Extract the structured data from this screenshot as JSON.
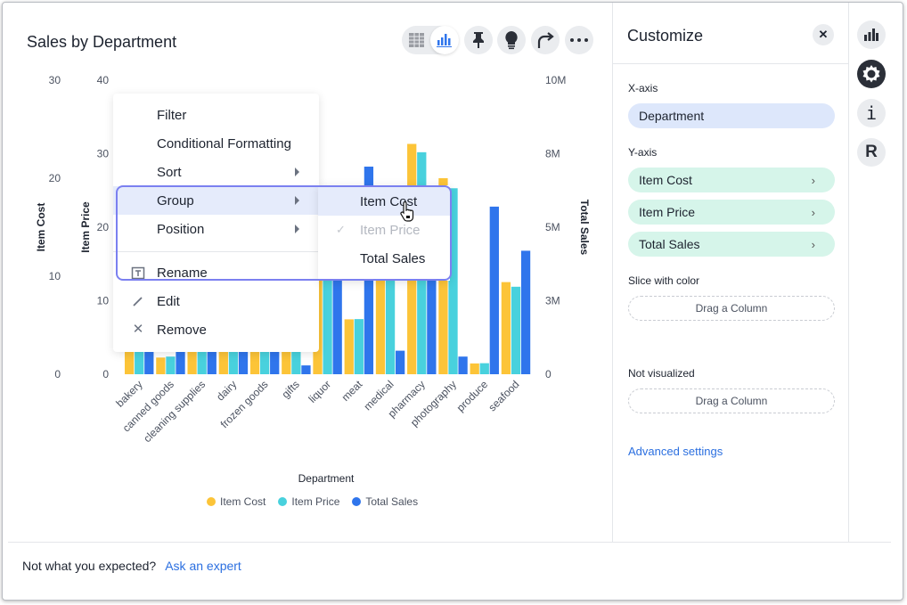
{
  "header": {
    "title": "Sales by Department",
    "icons": [
      "table-icon",
      "bar-chart-icon",
      "pin-icon",
      "lightbulb-icon",
      "share-icon",
      "more-icon"
    ]
  },
  "chart_data": {
    "type": "bar",
    "xlabel": "Department",
    "categories": [
      "bakery",
      "canned goods",
      "cleaning supplies",
      "dairy",
      "frozen goods",
      "gifts",
      "liquor",
      "meat",
      "medical",
      "pharmacy",
      "photography",
      "produce",
      "seafood"
    ],
    "axes": [
      {
        "label": "Item Cost",
        "range": [
          0,
          30
        ],
        "ticks": [
          "0",
          "10",
          "20",
          "30"
        ],
        "side": "left"
      },
      {
        "label": "Item Price",
        "range": [
          0,
          40
        ],
        "ticks": [
          "0",
          "10",
          "20",
          "30",
          "40"
        ],
        "side": "left"
      },
      {
        "label": "Total Sales",
        "range": [
          0,
          10000000
        ],
        "ticks": [
          "0",
          "3M",
          "5M",
          "8M",
          "10M"
        ],
        "side": "right"
      }
    ],
    "series": [
      {
        "name": "Item Cost",
        "axis": 0,
        "color": "#fcc438",
        "values": [
          3,
          1.7,
          3,
          3,
          3,
          3,
          12,
          5.6,
          12,
          23.5,
          20,
          1.1,
          9.4
        ]
      },
      {
        "name": "Item Price",
        "axis": 1,
        "color": "#48d1dd",
        "values": [
          4,
          2.4,
          4,
          4,
          4,
          4,
          15,
          7.5,
          15,
          30.2,
          25.3,
          1.5,
          11.9
        ]
      },
      {
        "name": "Total Sales",
        "axis": 2,
        "color": "#2f75ec",
        "values": [
          1000000,
          1000000,
          1000000,
          1000000,
          1000000,
          300000,
          3200000,
          7060000,
          800000,
          3500000,
          600000,
          5700000,
          4200000
        ]
      }
    ],
    "legend": "bottom",
    "grid": false
  },
  "context_menu": {
    "items": [
      {
        "label": "Filter"
      },
      {
        "label": "Conditional Formatting"
      },
      {
        "label": "Sort",
        "submenu": true
      },
      {
        "label": "Group",
        "submenu": true,
        "active": true
      },
      {
        "label": "Position",
        "submenu": true
      },
      {
        "label": "Rename",
        "icon": "rename-icon"
      },
      {
        "label": "Edit",
        "icon": "pencil-icon"
      },
      {
        "label": "Remove",
        "icon": "close-icon"
      }
    ],
    "submenu": [
      {
        "label": "Item Cost",
        "hovered": true
      },
      {
        "label": "Item Price",
        "checked": true,
        "disabled": true
      },
      {
        "label": "Total Sales"
      }
    ]
  },
  "panel": {
    "title": "Customize",
    "x_axis_label": "X-axis",
    "x_axis": "Department",
    "y_axis_label": "Y-axis",
    "y_axis": [
      "Item Cost",
      "Item Price",
      "Total Sales"
    ],
    "slice_label": "Slice with color",
    "slice_drop": "Drag a Column",
    "not_vis_label": "Not visualized",
    "not_vis_drop": "Drag a Column",
    "advanced": "Advanced settings"
  },
  "rail": {
    "icons": [
      "chart-icon",
      "settings-icon",
      "info-icon",
      "r-icon"
    ]
  },
  "footer": {
    "text": "Not what you expected?",
    "link": "Ask an expert"
  },
  "colors": {
    "accent": "#2b6fe0",
    "outline": "#7b80f0"
  }
}
